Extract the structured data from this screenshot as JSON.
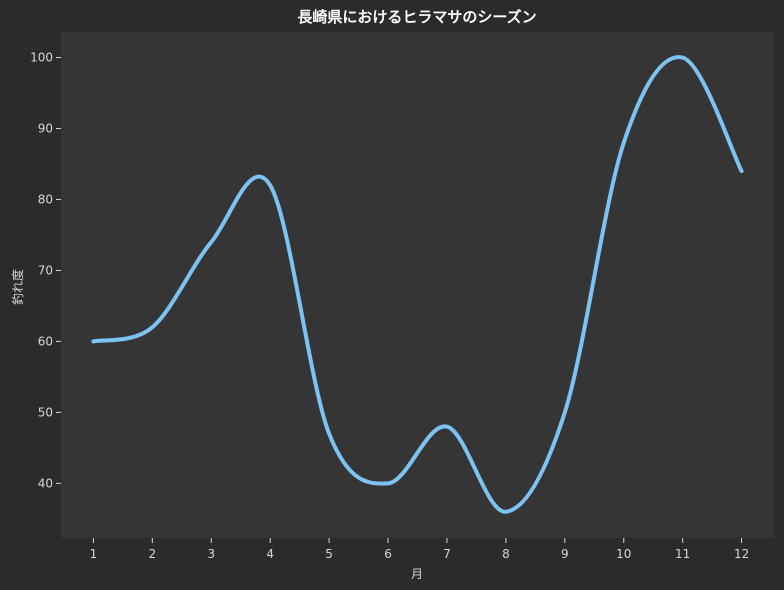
{
  "chart_data": {
    "type": "line",
    "title": "長崎県におけるヒラマサのシーズン",
    "xlabel": "月",
    "ylabel": "釣れ度",
    "x": [
      1,
      2,
      3,
      4,
      5,
      6,
      7,
      8,
      9,
      10,
      11,
      12
    ],
    "values": [
      60,
      62,
      74,
      82,
      47,
      40,
      48,
      36,
      50,
      88,
      100,
      84
    ],
    "xlim": [
      0.45,
      12.55
    ],
    "ylim": [
      32.3,
      103.6
    ],
    "xticks": [
      1,
      2,
      3,
      4,
      5,
      6,
      7,
      8,
      9,
      10,
      11,
      12
    ],
    "yticks": [
      40,
      50,
      60,
      70,
      80,
      90,
      100
    ],
    "grid": false,
    "legend": "none",
    "colors": {
      "background": "#2b2b2b",
      "plot_area": "#353535",
      "line": "#7cc3f4",
      "text": "#d6d6d6",
      "title": "#ffffff"
    }
  }
}
